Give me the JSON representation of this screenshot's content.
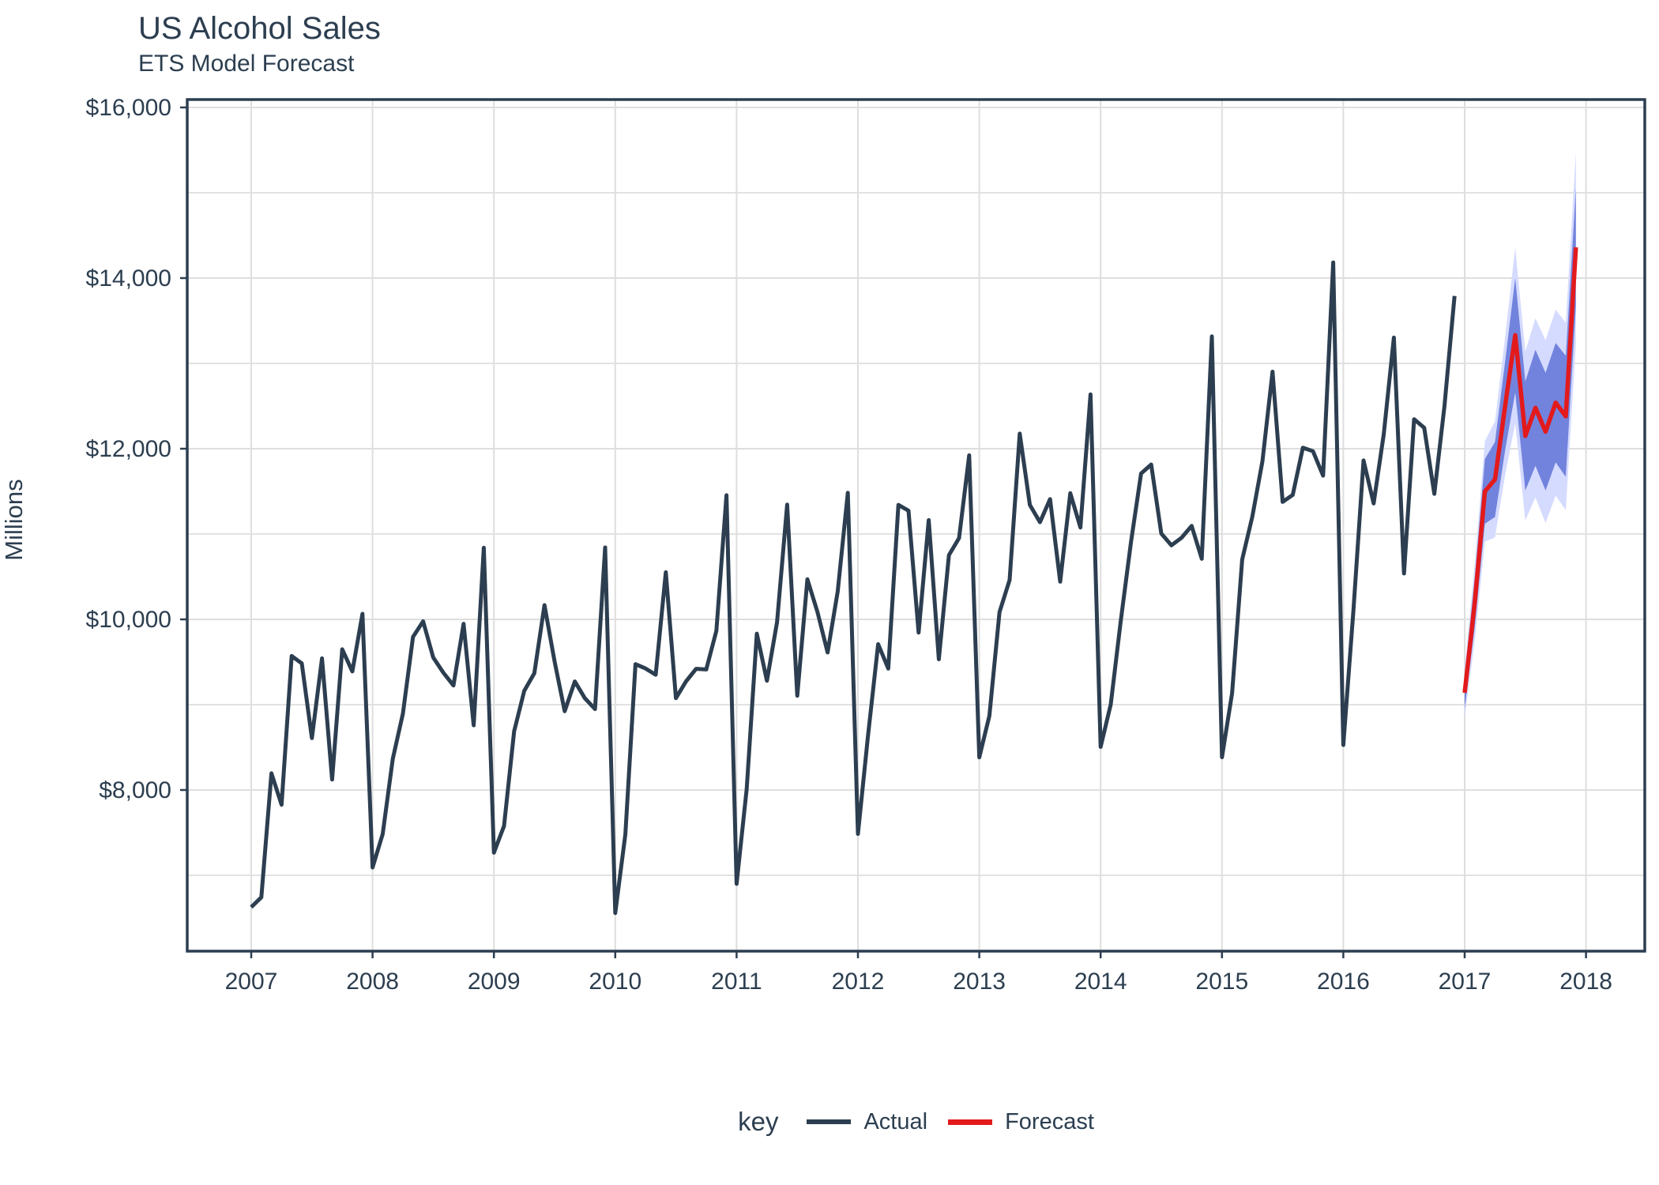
{
  "chart_data": {
    "type": "line",
    "title": "US Alcohol Sales",
    "subtitle": "ETS Model Forecast",
    "ylabel": "Millions",
    "xlabel": "",
    "unit": "USD millions",
    "grid": "on",
    "legend_position": "bottom",
    "legend_title": "key",
    "ylim": [
      6100,
      16100
    ],
    "y_ticks": {
      "major_values": [
        8000,
        10000,
        12000,
        14000,
        16000
      ],
      "major_labels": [
        "$8,000",
        "$10,000",
        "$12,000",
        "$14,000",
        "$16,000"
      ],
      "minor_values": [
        7000,
        9000,
        11000,
        13000,
        15000
      ]
    },
    "x_ticks": {
      "labels": [
        "2007",
        "2008",
        "2009",
        "2010",
        "2011",
        "2012",
        "2013",
        "2014",
        "2015",
        "2016",
        "2017",
        "2018"
      ],
      "month_index": [
        0,
        12,
        24,
        36,
        48,
        60,
        72,
        84,
        96,
        108,
        120,
        132
      ]
    },
    "series": [
      {
        "name": "Actual",
        "color": "#2c3e50",
        "start": "2007-01",
        "values_by_year": {
          "2007": [
            6627,
            6743,
            8195,
            7828,
            9570,
            9484,
            8608,
            9543,
            8123,
            9649,
            9390,
            10065
          ],
          "2008": [
            7093,
            7483,
            8365,
            8895,
            9794,
            9977,
            9553,
            9375,
            9225,
            9948,
            8758,
            10839
          ],
          "2009": [
            7266,
            7578,
            8688,
            9162,
            9369,
            10167,
            9507,
            8923,
            9272,
            9075,
            8949,
            10843
          ],
          "2010": [
            6558,
            7481,
            9475,
            9424,
            9351,
            10552,
            9077,
            9273,
            9420,
            9413,
            9866,
            11455
          ],
          "2011": [
            6901,
            8014,
            9832,
            9281,
            9967,
            11344,
            9106,
            10469,
            10085,
            9612,
            10328,
            11483
          ],
          "2012": [
            7486,
            8641,
            9709,
            9423,
            11342,
            11274,
            9845,
            11163,
            9532,
            10754,
            10953,
            11922
          ],
          "2013": [
            8383,
            8870,
            10085,
            10462,
            12177,
            11342,
            11139,
            11409,
            10442,
            11479,
            11077,
            12636
          ],
          "2014": [
            8506,
            9003,
            9991,
            10903,
            11709,
            11815,
            11006,
            10868,
            10956,
            11095,
            10710,
            13316
          ],
          "2015": [
            8384,
            9134,
            10702,
            11203,
            11852,
            12903,
            11377,
            11459,
            12012,
            11970,
            11684,
            14183
          ],
          "2016": [
            8528,
            10106,
            11862,
            11358,
            12171,
            13303,
            10538,
            12345,
            12245,
            11471,
            12496,
            13791
          ]
        }
      },
      {
        "name": "Forecast",
        "color": "#e31a1c",
        "start": "2017-01",
        "values": [
          9140,
          10200,
          11500,
          11640,
          12500,
          13330,
          12150,
          12480,
          12200,
          12540,
          12380,
          14360
        ],
        "ribbons": {
          "lo_95": [
            8850,
            9750,
            10910,
            10960,
            11690,
            12300,
            11160,
            11430,
            11130,
            11450,
            11280,
            13240
          ],
          "lo_80": [
            8955,
            9910,
            11120,
            11200,
            11980,
            12660,
            11510,
            11800,
            11510,
            11840,
            11670,
            13670
          ],
          "hi_80": [
            9325,
            10490,
            11880,
            12080,
            13020,
            14000,
            12790,
            13160,
            12890,
            13240,
            13090,
            15050
          ],
          "hi_95": [
            9430,
            10650,
            12090,
            12320,
            13310,
            14360,
            13140,
            13530,
            13270,
            13630,
            13480,
            15480
          ],
          "fill_80": "#7283dd",
          "fill_95": "#d5dbff"
        }
      }
    ]
  },
  "legend": {
    "title": "key",
    "items": [
      {
        "label": "Actual",
        "color": "#2c3e50"
      },
      {
        "label": "Forecast",
        "color": "#e31a1c"
      }
    ]
  },
  "colors": {
    "text": "#2c3e50",
    "grid": "#dedede",
    "panel_border": "#2c3e50",
    "background": "#ffffff",
    "actual": "#2c3e50",
    "forecast": "#e31a1c",
    "ribbon_80": "#7283dd",
    "ribbon_95": "#d5dbff"
  }
}
